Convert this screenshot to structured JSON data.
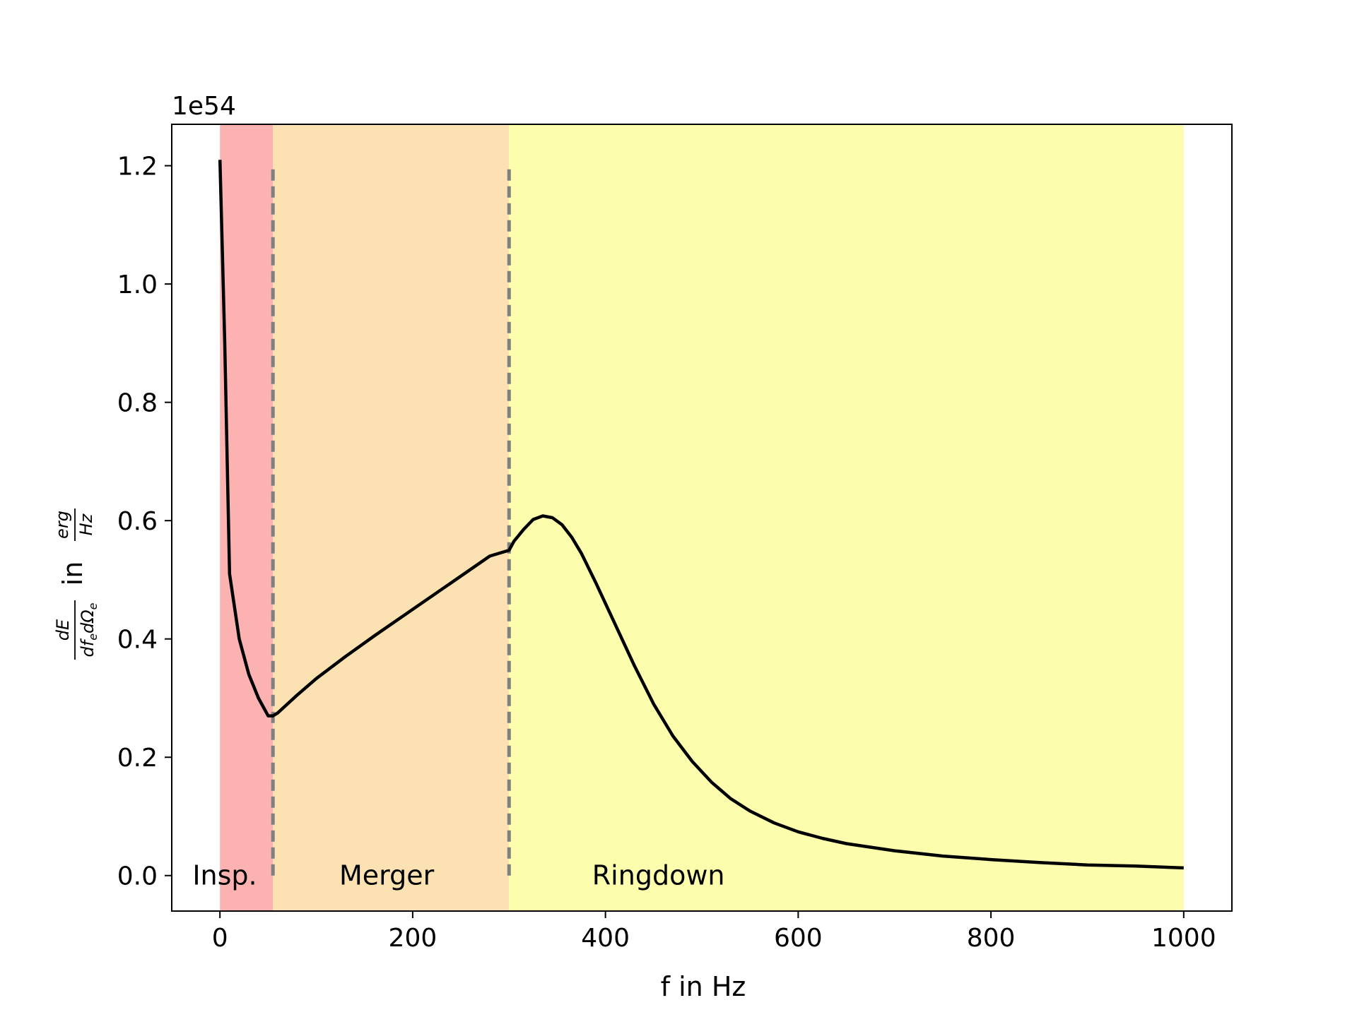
{
  "chart_data": {
    "type": "line",
    "title": "",
    "xlabel": "f in Hz",
    "ylabel": {
      "numerator": "dE",
      "denominator": "df",
      "denominator_sub1": "e",
      "denominator_mid": "dΩ",
      "denominator_sub2": "e",
      "word": "in",
      "unit_numerator": "erg",
      "unit_denominator": "Hz"
    },
    "y_offset_text": "1e54",
    "xlim": [
      -50,
      1050
    ],
    "ylim": [
      -0.06,
      1.27
    ],
    "xticks": [
      0,
      200,
      400,
      600,
      800,
      1000
    ],
    "xtick_labels": [
      "0",
      "200",
      "400",
      "600",
      "800",
      "1000"
    ],
    "yticks": [
      0.0,
      0.2,
      0.4,
      0.6,
      0.8,
      1.0,
      1.2
    ],
    "ytick_labels": [
      "0.0",
      "0.2",
      "0.4",
      "0.6",
      "0.8",
      "1.0",
      "1.2"
    ],
    "grid": false,
    "regions": [
      {
        "label": "Insp.",
        "x_start": 0,
        "x_end": 55,
        "color": "#fdb2b2",
        "label_x": 5
      },
      {
        "label": "Merger",
        "x_start": 55,
        "x_end": 300,
        "color": "#fce2b2",
        "label_x": 173
      },
      {
        "label": "Ringdown",
        "x_start": 300,
        "x_end": 1000,
        "color": "#fdfdae",
        "label_x": 455
      }
    ],
    "vlines": [
      {
        "x": 55,
        "y_max": 1.2,
        "color": "#808080",
        "style": "dashed"
      },
      {
        "x": 300,
        "y_max": 1.2,
        "color": "#808080",
        "style": "dashed"
      }
    ],
    "series": [
      {
        "color": "#000000",
        "x": [
          0,
          5,
          10,
          20,
          30,
          40,
          50,
          55,
          60,
          80,
          100,
          130,
          160,
          200,
          240,
          280,
          300,
          305,
          315,
          325,
          335,
          345,
          355,
          365,
          375,
          390,
          410,
          430,
          450,
          470,
          490,
          510,
          530,
          550,
          575,
          600,
          625,
          650,
          700,
          750,
          800,
          850,
          900,
          950,
          1000
        ],
        "y": [
          1.21,
          0.9,
          0.51,
          0.4,
          0.34,
          0.3,
          0.27,
          0.27,
          0.275,
          0.305,
          0.333,
          0.37,
          0.405,
          0.45,
          0.495,
          0.54,
          0.55,
          0.565,
          0.585,
          0.602,
          0.608,
          0.605,
          0.593,
          0.572,
          0.545,
          0.495,
          0.425,
          0.355,
          0.29,
          0.236,
          0.193,
          0.158,
          0.13,
          0.109,
          0.089,
          0.074,
          0.063,
          0.054,
          0.042,
          0.033,
          0.027,
          0.022,
          0.018,
          0.016,
          0.013
        ]
      }
    ]
  }
}
